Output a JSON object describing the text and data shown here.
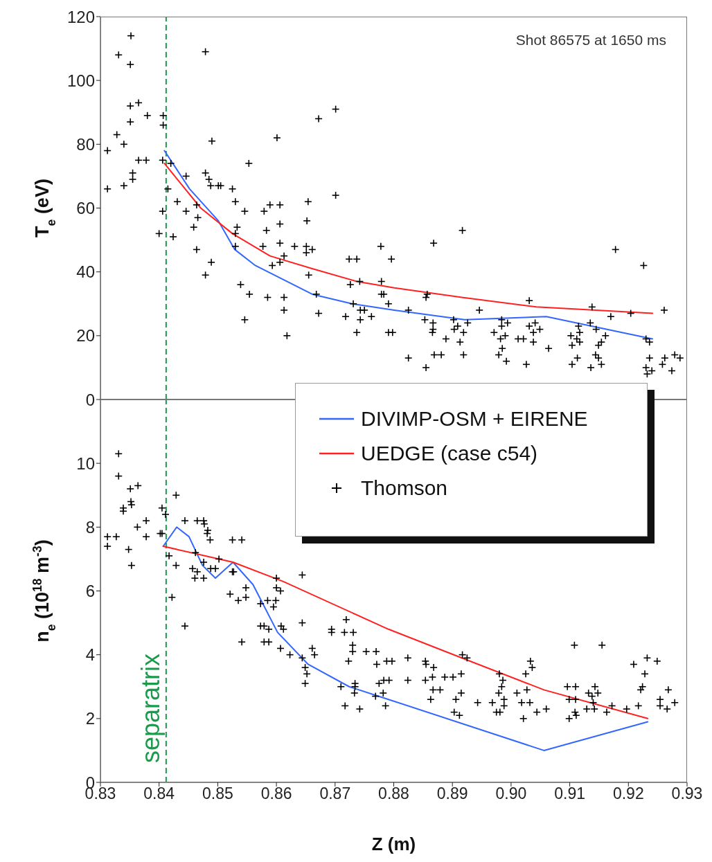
{
  "chart_data": [
    {
      "type": "line",
      "ylabel": "T$_{e}$ (eV)",
      "annotations": [
        "Shot 86575 at 1650 ms"
      ],
      "xlim": [
        0.83,
        0.93
      ],
      "xticks": [
        0.83,
        0.84,
        0.85,
        0.86,
        0.87,
        0.88,
        0.89,
        0.9,
        0.91,
        0.92,
        0.93
      ],
      "ylim": [
        0,
        120
      ],
      "yticks": [
        0,
        20,
        40,
        60,
        80,
        100,
        120
      ],
      "tick_labels": "y",
      "legend": false,
      "ref_lines": [
        {
          "axis": "x",
          "value": 0.8412,
          "color": "#1a9a4a",
          "line_style": "dashed"
        }
      ],
      "series": [
        {
          "color": "#3366ff",
          "line_style": "solid",
          "x": [
            0.8409,
            0.8452,
            0.8501,
            0.8529,
            0.8564,
            0.8661,
            0.8729,
            0.8801,
            0.8921,
            0.906,
            0.9241
          ],
          "values": [
            78,
            66,
            56,
            47,
            42,
            33,
            30,
            28,
            25,
            26,
            19
          ]
        },
        {
          "color": "#ff2020",
          "line_style": "solid",
          "x": [
            0.8409,
            0.8471,
            0.8525,
            0.8589,
            0.8661,
            0.8737,
            0.8801,
            0.8916,
            0.9043,
            0.9241
          ],
          "values": [
            74,
            60,
            52,
            45,
            41,
            37,
            35,
            32,
            29,
            27
          ]
        },
        {
          "type": "scatter",
          "color": "#000000",
          "marker": "cross",
          "x": [
            0.8352,
            0.8331,
            0.8351,
            0.8479,
            0.8365,
            0.8351,
            0.838,
            0.8351,
            0.8407,
            0.8407,
            0.8328,
            0.8312,
            0.834,
            0.8365,
            0.8378,
            0.8406,
            0.8355,
            0.8355,
            0.8312,
            0.834,
            0.842,
            0.849,
            0.8601,
            0.8672,
            0.8701,
            0.8553,
            0.8415,
            0.8446,
            0.8479,
            0.8485,
            0.8488,
            0.8501,
            0.8505,
            0.8525,
            0.853,
            0.8546,
            0.8579,
            0.8589,
            0.8606,
            0.8606,
            0.8583,
            0.8654,
            0.8652,
            0.8701,
            0.8406,
            0.84,
            0.8424,
            0.8431,
            0.8446,
            0.8464,
            0.8466,
            0.8459,
            0.8464,
            0.8489,
            0.8479,
            0.8533,
            0.853,
            0.853,
            0.8539,
            0.8554,
            0.8546,
            0.8577,
            0.8585,
            0.8593,
            0.8606,
            0.8606,
            0.8613,
            0.8613,
            0.8613,
            0.8618,
            0.8631,
            0.8651,
            0.8661,
            0.8651,
            0.8655,
            0.8668,
            0.8672,
            0.8724,
            0.8737,
            0.8726,
            0.8742,
            0.8731,
            0.8718,
            0.8743,
            0.875,
            0.8743,
            0.8762,
            0.8737,
            0.8778,
            0.8796,
            0.8779,
            0.8779,
            0.8783,
            0.8791,
            0.8791,
            0.8798,
            0.8868,
            0.8917,
            0.8857,
            0.8855,
            0.8825,
            0.8946,
            0.9031,
            0.9138,
            0.9178,
            0.9226,
            0.917,
            0.9204,
            0.9261,
            0.8853,
            0.8867,
            0.8867,
            0.8866,
            0.8889,
            0.8902,
            0.8909,
            0.8903,
            0.8919,
            0.8926,
            0.8913,
            0.8919,
            0.8869,
            0.8881,
            0.8825,
            0.8855,
            0.8971,
            0.8984,
            0.8994,
            0.8984,
            0.899,
            0.8982,
            0.8985,
            0.8979,
            0.8992,
            0.9012,
            0.9021,
            0.9026,
            0.9031,
            0.9041,
            0.9038,
            0.9049,
            0.9038,
            0.9064,
            0.9102,
            0.9115,
            0.9117,
            0.9112,
            0.9117,
            0.9104,
            0.9113,
            0.9104,
            0.9135,
            0.9145,
            0.9161,
            0.9154,
            0.9149,
            0.9144,
            0.9149,
            0.9154,
            0.9136,
            0.923,
            0.9236,
            0.9236,
            0.923,
            0.924,
            0.9232,
            0.9258,
            0.9262,
            0.9274,
            0.9279,
            0.9288
          ],
          "values": [
            114,
            108,
            105,
            109,
            93,
            92,
            89,
            87,
            89,
            86,
            83,
            78,
            80,
            75,
            75,
            75,
            71,
            69,
            66,
            67,
            74,
            81,
            82,
            88,
            91,
            74,
            66,
            70,
            71,
            69,
            67,
            67,
            67,
            66,
            62,
            59,
            59,
            61,
            61,
            55,
            53,
            62,
            56,
            64,
            59,
            52,
            51,
            62,
            59,
            61,
            57,
            54,
            47,
            43,
            39,
            54,
            52,
            48,
            36,
            33,
            25,
            48,
            32,
            42,
            43,
            49,
            45,
            32,
            28,
            20,
            48,
            48,
            47,
            46,
            39,
            33,
            27,
            44,
            44,
            36,
            37,
            30,
            26,
            28,
            28,
            25,
            26,
            21,
            48,
            44,
            37,
            33,
            33,
            30,
            21,
            21,
            49,
            53,
            33,
            32,
            28,
            28,
            31,
            29,
            47,
            42,
            26,
            27,
            28,
            25,
            24,
            22,
            21,
            19,
            25,
            23,
            22,
            21,
            24,
            18,
            14,
            14,
            14,
            13,
            10,
            21,
            25,
            24,
            23,
            20,
            19,
            16,
            14,
            12,
            19,
            19,
            11,
            23,
            24,
            21,
            22,
            18,
            16,
            20,
            23,
            21,
            19,
            18,
            17,
            13,
            11,
            24,
            22,
            20,
            18,
            17,
            14,
            13,
            11,
            10,
            19,
            18,
            13,
            10,
            9,
            8,
            11,
            13,
            9,
            14,
            13
          ]
        }
      ]
    },
    {
      "type": "line",
      "xlabel": "Z (m)",
      "ylabel": "n$_{e}$ (10$^{18}$ m$^{-3}$)",
      "xlim": [
        0.83,
        0.93
      ],
      "xticks": [
        0.83,
        0.84,
        0.85,
        0.86,
        0.87,
        0.88,
        0.89,
        {
          "value": 0.9,
          "label": "0.90"
        },
        0.91,
        0.92,
        0.93
      ],
      "ylim": [
        0,
        12
      ],
      "yticks": [
        0,
        2,
        4,
        6,
        8,
        10
      ],
      "legend": "top right",
      "ref_lines": [
        {
          "axis": "x",
          "value": 0.8412,
          "label": "separatrix",
          "color": "#1a9a4a",
          "line_style": "dashed"
        }
      ],
      "series": [
        {
          "name": "DIVIMP-OSM + EIRENE",
          "color": "#3366ff",
          "line_style": "solid",
          "x": [
            0.8407,
            0.843,
            0.8451,
            0.8474,
            0.8496,
            0.8526,
            0.856,
            0.8602,
            0.8654,
            0.8724,
            0.8791,
            0.9056,
            0.9233
          ],
          "values": [
            7.4,
            8.0,
            7.7,
            6.8,
            6.4,
            6.9,
            6.2,
            4.7,
            3.7,
            3.0,
            2.6,
            1.0,
            1.9
          ]
        },
        {
          "name": "UEDGE (case c54)",
          "color": "#ff2020",
          "line_style": "solid",
          "x": [
            0.8407,
            0.8526,
            0.8611,
            0.8791,
            0.8916,
            0.9056,
            0.9233
          ],
          "values": [
            7.4,
            6.9,
            6.3,
            4.8,
            3.9,
            2.9,
            2.0
          ]
        },
        {
          "type": "scatter",
          "name": "Thomson",
          "color": "#000000",
          "marker": "cross",
          "x": [
            0.8331,
            0.8331,
            0.8351,
            0.8364,
            0.8352,
            0.8353,
            0.8339,
            0.8339,
            0.8378,
            0.8363,
            0.8312,
            0.8327,
            0.8312,
            0.8378,
            0.8348,
            0.8353,
            0.8405,
            0.8411,
            0.8402,
            0.8405,
            0.8429,
            0.8444,
            0.8465,
            0.8476,
            0.8477,
            0.8483,
            0.8482,
            0.8487,
            0.8525,
            0.8541,
            0.8462,
            0.8417,
            0.8429,
            0.8457,
            0.8465,
            0.8461,
            0.8476,
            0.8476,
            0.8488,
            0.8496,
            0.8502,
            0.8525,
            0.8527,
            0.8422,
            0.8444,
            0.8521,
            0.8535,
            0.8548,
            0.8548,
            0.8541,
            0.8573,
            0.8585,
            0.86,
            0.86,
            0.8607,
            0.8599,
            0.8595,
            0.8644,
            0.8573,
            0.8579,
            0.8587,
            0.8579,
            0.8587,
            0.8608,
            0.8612,
            0.8607,
            0.8623,
            0.8644,
            0.8644,
            0.8661,
            0.8665,
            0.8649,
            0.8652,
            0.8649,
            0.871,
            0.8734,
            0.8734,
            0.8733,
            0.8717,
            0.8742,
            0.8719,
            0.8694,
            0.8694,
            0.8716,
            0.8731,
            0.873,
            0.873,
            0.8723,
            0.8753,
            0.877,
            0.8771,
            0.8788,
            0.8775,
            0.8783,
            0.8782,
            0.8769,
            0.8786,
            0.8797,
            0.8824,
            0.8854,
            0.8855,
            0.8868,
            0.8792,
            0.8824,
            0.8854,
            0.8866,
            0.8867,
            0.8879,
            0.8863,
            0.8887,
            0.8901,
            0.8915,
            0.8915,
            0.8906,
            0.8903,
            0.8912,
            0.8917,
            0.8925,
            0.8943,
            0.8968,
            0.898,
            0.8986,
            0.8984,
            0.8979,
            0.8988,
            0.8988,
            0.8975,
            0.8981,
            0.901,
            0.9027,
            0.9018,
            0.9032,
            0.9021,
            0.9033,
            0.9036,
            0.9025,
            0.9044,
            0.906,
            0.9096,
            0.911,
            0.9099,
            0.911,
            0.9109,
            0.9111,
            0.9099,
            0.9108,
            0.9155,
            0.9132,
            0.9143,
            0.9148,
            0.9138,
            0.914,
            0.9129,
            0.9142,
            0.9163,
            0.9172,
            0.9197,
            0.9217,
            0.9221,
            0.9224,
            0.9228,
            0.9209,
            0.9232,
            0.9249,
            0.9268,
            0.9254,
            0.9254,
            0.9266,
            0.9279
          ],
          "values": [
            10.3,
            9.6,
            9.2,
            9.3,
            8.8,
            8.7,
            8.6,
            8.5,
            8.2,
            8.0,
            7.7,
            7.7,
            7.4,
            7.7,
            7.3,
            6.8,
            8.6,
            8.4,
            7.8,
            7.8,
            9.0,
            8.2,
            8.2,
            8.2,
            8.1,
            7.9,
            7.8,
            7.6,
            7.6,
            7.6,
            7.2,
            7.1,
            6.8,
            6.7,
            6.6,
            6.4,
            6.4,
            6.9,
            6.7,
            6.7,
            7.0,
            6.6,
            6.6,
            5.8,
            4.9,
            5.9,
            5.7,
            6.1,
            5.8,
            4.4,
            5.6,
            5.7,
            6.4,
            6.1,
            6.0,
            5.7,
            5.5,
            6.5,
            4.9,
            4.9,
            4.8,
            4.4,
            4.4,
            4.9,
            4.8,
            4.2,
            4.0,
            5.0,
            3.9,
            4.2,
            4.0,
            3.6,
            3.4,
            3.1,
            3.0,
            3.1,
            3.0,
            2.8,
            2.4,
            2.3,
            5.1,
            4.8,
            4.7,
            4.7,
            4.7,
            4.3,
            4.1,
            3.8,
            4.1,
            4.1,
            3.7,
            3.8,
            3.1,
            3.2,
            2.8,
            2.7,
            2.4,
            3.8,
            3.9,
            3.8,
            3.7,
            3.6,
            3.2,
            3.2,
            3.2,
            3.3,
            2.9,
            2.9,
            2.6,
            3.3,
            3.3,
            3.4,
            2.8,
            2.6,
            2.2,
            2.1,
            4.0,
            3.9,
            2.5,
            2.5,
            3.4,
            3.2,
            3.0,
            2.8,
            2.6,
            2.4,
            2.2,
            2.2,
            2.8,
            2.9,
            2.5,
            2.5,
            2.0,
            3.8,
            3.6,
            3.4,
            2.2,
            2.3,
            3.0,
            3.0,
            2.6,
            2.6,
            2.2,
            2.1,
            2.0,
            4.3,
            4.3,
            2.8,
            3.0,
            2.8,
            2.7,
            2.5,
            2.3,
            2.3,
            2.2,
            2.4,
            2.3,
            2.4,
            2.9,
            3.0,
            3.4,
            3.7,
            3.9,
            3.8,
            2.9,
            2.6,
            2.4,
            2.3,
            2.5
          ]
        }
      ]
    }
  ]
}
